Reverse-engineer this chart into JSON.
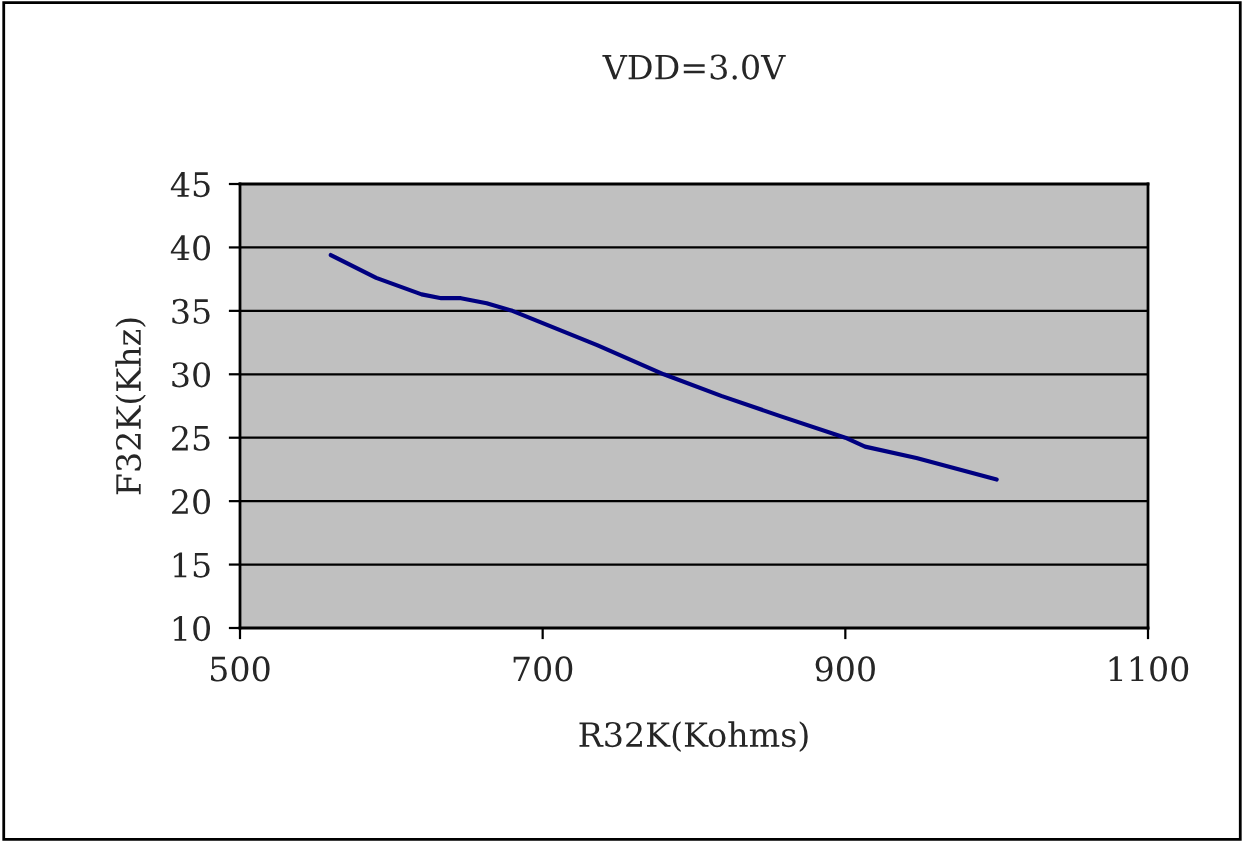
{
  "chart_data": {
    "type": "line",
    "title": "VDD=3.0V",
    "xlabel": "R32K(Kohms)",
    "ylabel": "F32K(Khz)",
    "series": [
      {
        "color": "#000080",
        "x": [
          560,
          590,
          620,
          633,
          646,
          663,
          680,
          736,
          780,
          818,
          857,
          900,
          913,
          947,
          1000
        ],
        "values": [
          39.4,
          37.6,
          36.3,
          36.0,
          36.0,
          35.6,
          35.0,
          32.3,
          30.0,
          28.3,
          26.7,
          25.0,
          24.3,
          23.4,
          21.7
        ]
      }
    ],
    "xlim": [
      500,
      1100
    ],
    "xticks": [
      500,
      700,
      900,
      1100
    ],
    "ylim": [
      10,
      45
    ],
    "yticks": [
      10,
      15,
      20,
      25,
      30,
      35,
      40,
      45
    ],
    "grid": "y",
    "marker": "none",
    "line_style": "solid"
  }
}
